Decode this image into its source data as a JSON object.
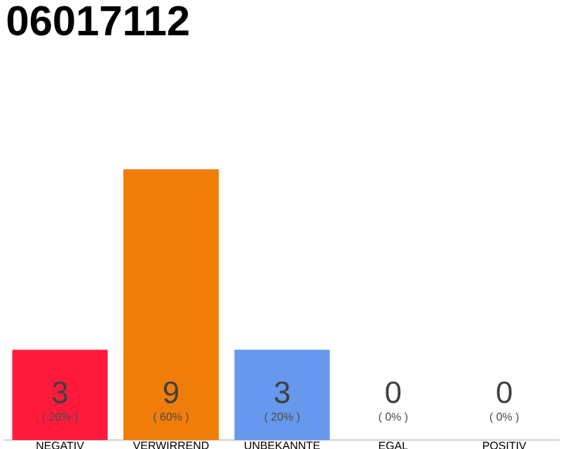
{
  "chart_data": {
    "type": "bar",
    "title": "06017112",
    "categories": [
      "NEGATIV",
      "VERWIRREND",
      "UNBEKANNTE",
      "EGAL",
      "POSITIV"
    ],
    "values": [
      3,
      9,
      3,
      0,
      0
    ],
    "colors": [
      "#ff1a3c",
      "#f07d0a",
      "#6699ee",
      "#ff1a3c",
      "#ff1a3c"
    ],
    "ylim": [
      0,
      9
    ],
    "data_labels": true,
    "tick_labels": "x",
    "annotations": [
      "( 20% )",
      "( 60% )",
      "( 20% )",
      "( 0% )",
      "( 0% )"
    ]
  }
}
